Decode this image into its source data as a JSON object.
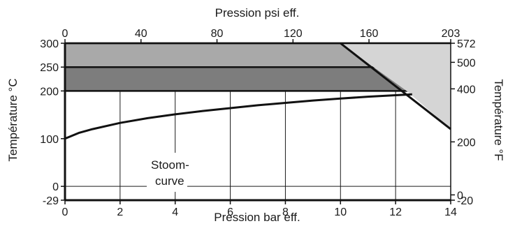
{
  "chart_data": {
    "type": "area",
    "x_bottom_label": "Pression bar eff.",
    "x_top_label": "Pression psi eff.",
    "y_left_label": "Température °C",
    "y_right_label": "Température °F",
    "x_bottom_range": [
      0,
      14
    ],
    "x_top_range": [
      0,
      203
    ],
    "y_left_range": [
      -29,
      300
    ],
    "y_right_range": [
      -20,
      572
    ],
    "x_bottom_ticks": [
      "0",
      "2",
      "4",
      "6",
      "8",
      "10",
      "12",
      "14"
    ],
    "x_top_ticks": [
      {
        "value": 0,
        "label": "0"
      },
      {
        "value": 40,
        "label": "40"
      },
      {
        "value": 80,
        "label": "80"
      },
      {
        "value": 120,
        "label": "120"
      },
      {
        "value": 160,
        "label": "160"
      },
      {
        "value": 203,
        "label": "203"
      }
    ],
    "y_left_ticks": [
      {
        "value": -29,
        "label": "-29"
      },
      {
        "value": 0,
        "label": "0"
      },
      {
        "value": 100,
        "label": "100"
      },
      {
        "value": 200,
        "label": "200"
      },
      {
        "value": 250,
        "label": "250"
      },
      {
        "value": 300,
        "label": "300"
      }
    ],
    "y_right_ticks": [
      {
        "value": -20,
        "label": "-20"
      },
      {
        "value": 0,
        "label": "0"
      },
      {
        "value": 200,
        "label": "200"
      },
      {
        "value": 400,
        "label": "400"
      },
      {
        "value": 500,
        "label": "500"
      },
      {
        "value": 572,
        "label": "572"
      }
    ],
    "bands": [
      {
        "y_range": [
          250,
          300
        ],
        "color": "#a9a9a9"
      },
      {
        "y_range": [
          200,
          250
        ],
        "color": "#7d7d7d"
      }
    ],
    "limit_region": {
      "points": [
        [
          10.0,
          300
        ],
        [
          14,
          300
        ],
        [
          14,
          120
        ],
        [
          12.4,
          200
        ]
      ],
      "color": "#d5d5d5"
    },
    "limit_line": [
      [
        10.0,
        300
      ],
      [
        14,
        120
      ]
    ],
    "steam_curve": {
      "label_line1": "Stoom-",
      "label_line2": "curve",
      "points": [
        [
          0,
          100
        ],
        [
          0.5,
          112
        ],
        [
          1,
          120
        ],
        [
          2,
          133
        ],
        [
          3,
          143
        ],
        [
          4,
          151
        ],
        [
          5,
          158
        ],
        [
          6,
          164
        ],
        [
          7,
          170
        ],
        [
          8,
          175
        ],
        [
          9,
          180
        ],
        [
          10,
          184
        ],
        [
          11,
          188
        ],
        [
          12,
          191
        ],
        [
          12.6,
          193
        ]
      ]
    },
    "grid": true,
    "colors": {
      "line": "#111111",
      "grid": "#1a1a1a"
    }
  }
}
